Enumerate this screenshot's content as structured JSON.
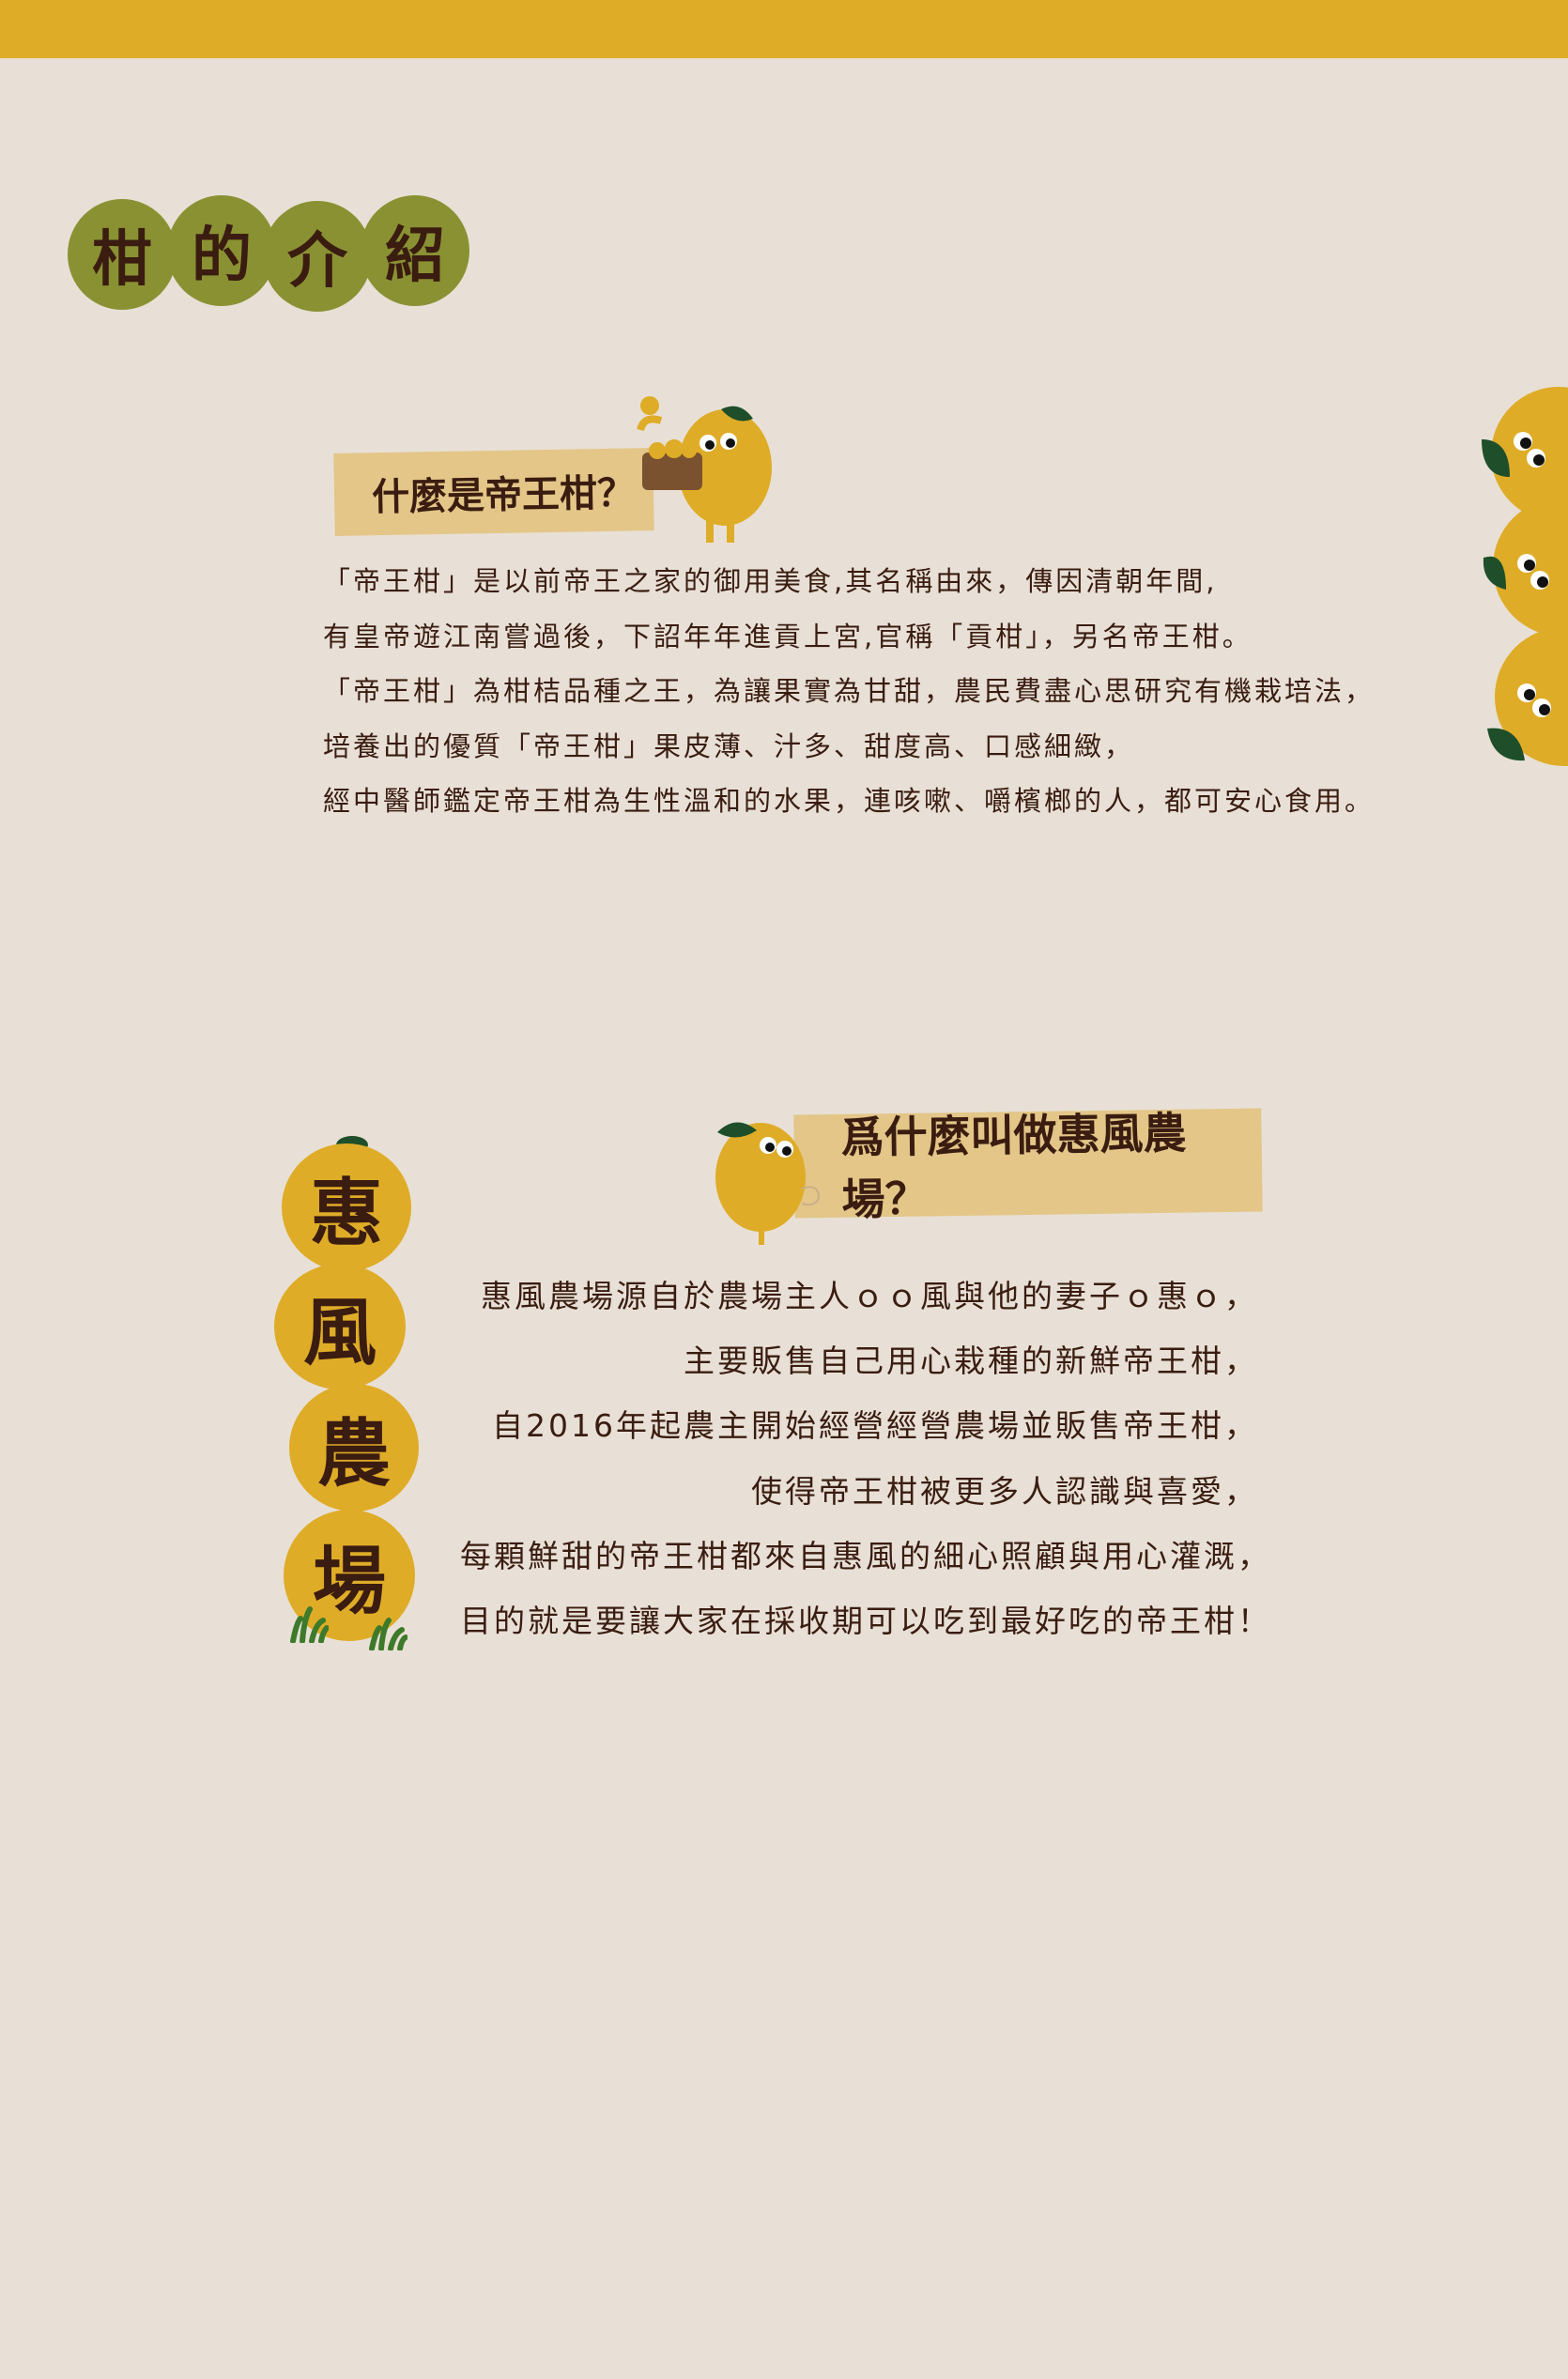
{
  "colors": {
    "background": "#e8e0d6",
    "top_bar": "#dfac28",
    "title_blob": "#8a9133",
    "orange": "#dfac28",
    "banner": "#e3c688",
    "text": "#3a1c10",
    "leaf": "#1e4f2a"
  },
  "title": {
    "chars": [
      "柑",
      "的",
      "介",
      "紹"
    ]
  },
  "section1": {
    "heading": "什麼是帝王柑？",
    "lines": [
      "「帝王柑」是以前帝王之家的御用美食,其名稱由來，傳因清朝年間,",
      "有皇帝遊江南嘗過後，下詔年年進貢上宮,官稱「貢柑」，另名帝王柑。",
      "「帝王柑」為柑桔品種之王，為讓果實為甘甜，農民費盡心思研究有機栽培法，",
      "培養出的優質「帝王柑」果皮薄、汁多、甜度高、口感細緻，",
      "經中醫師鑑定帝王柑為生性溫和的水果，連咳嗽、嚼檳榔的人，都可安心食用。"
    ]
  },
  "section2": {
    "heading": "爲什麼叫做惠風農場？",
    "farm_name_chars": [
      "惠",
      "風",
      "農",
      "場"
    ],
    "lines": [
      "惠風農場源自於農場主人ｏｏ風與他的妻子ｏ惠ｏ，",
      "主要販售自己用心栽種的新鮮帝王柑，",
      "自2016年起農主開始經營經營農場並販售帝王柑，",
      "使得帝王柑被更多人認識與喜愛，",
      "每顆鮮甜的帝王柑都來自惠風的細心照顧與用心灌溉，",
      "目的就是要讓大家在採收期可以吃到最好吃的帝王柑！"
    ]
  },
  "icons": [
    "orange-mascot-holding-basket-icon",
    "orange-mascot-peeking-icon",
    "peeking-oranges-icon",
    "grass-icon"
  ]
}
